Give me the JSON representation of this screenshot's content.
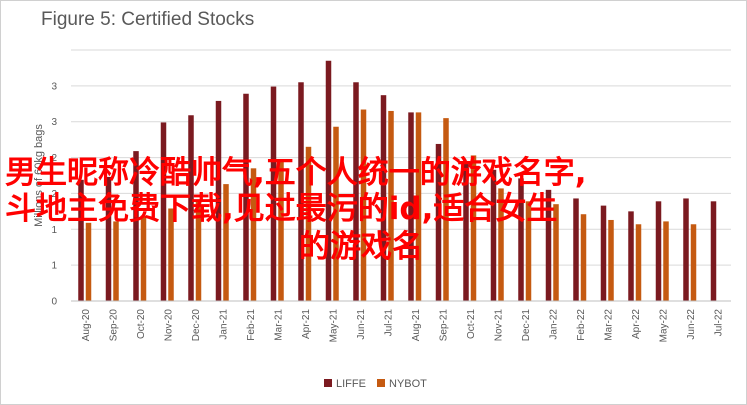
{
  "chart_data": {
    "type": "bar",
    "title": "Figure 5: Certified Stocks",
    "ylabel": "Millions of 60kg bags",
    "xlabel": "",
    "ylim": [
      0,
      3.5
    ],
    "yticks": [
      "0",
      "1",
      "1",
      "2",
      "2",
      "3",
      "3"
    ],
    "categories": [
      "Aug-20",
      "Sep-20",
      "Oct-20",
      "Nov-20",
      "Dec-20",
      "Jan-21",
      "Feb-21",
      "Mar-21",
      "Apr-21",
      "May-21",
      "Jun-21",
      "Jul-21",
      "Aug-21",
      "Sep-21",
      "Oct-21",
      "Nov-21",
      "Dec-21",
      "Jan-22",
      "Feb-22",
      "Mar-22",
      "Apr-22",
      "May-22",
      "Jun-22",
      "Jul-22"
    ],
    "series": [
      {
        "name": "LIFFE",
        "color": "#7b1a20",
        "values": [
          1.69,
          1.73,
          2.09,
          2.49,
          2.59,
          2.79,
          2.89,
          2.99,
          3.05,
          3.35,
          3.05,
          2.87,
          2.63,
          2.19,
          1.95,
          1.83,
          1.71,
          1.55,
          1.43,
          1.33,
          1.25,
          1.39,
          1.43,
          1.39
        ]
      },
      {
        "name": "NYBOT",
        "color": "#c55a11",
        "values": [
          1.09,
          1.11,
          1.19,
          1.29,
          1.39,
          1.63,
          1.85,
          1.97,
          2.15,
          2.43,
          2.67,
          2.65,
          2.63,
          2.55,
          2.03,
          1.57,
          1.39,
          1.35,
          1.21,
          1.13,
          1.07,
          1.11,
          1.07,
          null
        ]
      }
    ],
    "grid": true,
    "legend": "bottom"
  },
  "overlay": {
    "line1": "男生昵称冷酷帅气,五个人统一的游戏名字,",
    "line2": "斗地主免费下载,见过最污的id,适合女生",
    "line3": "的游戏名"
  }
}
